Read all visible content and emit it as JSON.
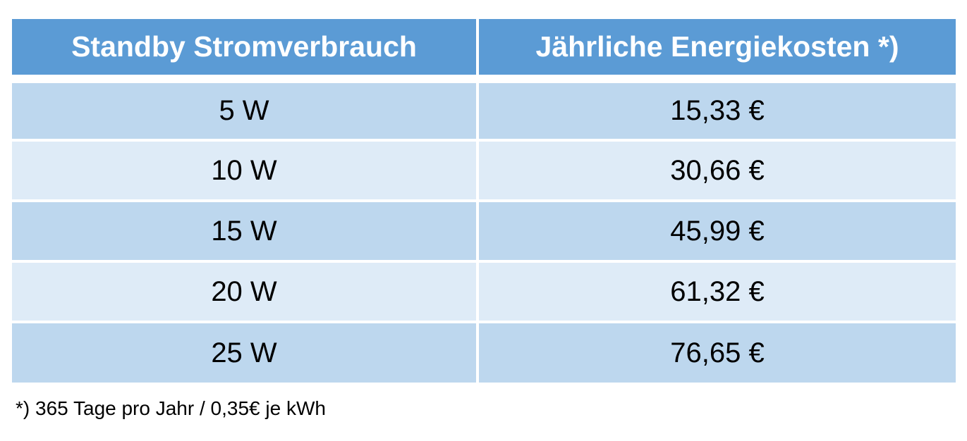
{
  "table": {
    "header": [
      "Standby Stromverbrauch",
      "Jährliche Energiekosten *)"
    ],
    "rows": [
      [
        "5 W",
        "15,33 €"
      ],
      [
        "10 W",
        "30,66 €"
      ],
      [
        "15 W",
        "45,99 €"
      ],
      [
        "20 W",
        "61,32 €"
      ],
      [
        "25 W",
        "76,65 €"
      ]
    ]
  },
  "footnote": "*) 365 Tage pro Jahr / 0,35€ je kWh"
}
